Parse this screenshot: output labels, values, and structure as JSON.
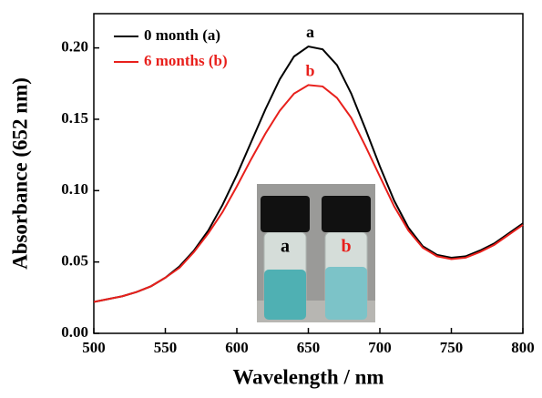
{
  "chart_data": {
    "type": "line",
    "x_label": "Wavelength / nm",
    "y_label": "Absorbance (652 nm)",
    "x": [
      500,
      510,
      520,
      530,
      540,
      550,
      560,
      570,
      580,
      590,
      600,
      610,
      620,
      630,
      640,
      650,
      660,
      670,
      680,
      690,
      700,
      710,
      720,
      730,
      740,
      750,
      760,
      770,
      780,
      790,
      800
    ],
    "series": [
      {
        "name": "0 month (a)",
        "color": "#000000",
        "label": "a",
        "values": [
          0.022,
          0.024,
          0.026,
          0.029,
          0.033,
          0.039,
          0.047,
          0.058,
          0.072,
          0.09,
          0.111,
          0.134,
          0.157,
          0.178,
          0.194,
          0.201,
          0.199,
          0.188,
          0.168,
          0.143,
          0.117,
          0.093,
          0.074,
          0.061,
          0.055,
          0.053,
          0.054,
          0.058,
          0.063,
          0.07,
          0.077
        ]
      },
      {
        "name": "6 months (b)",
        "color": "#e8201c",
        "label": "b",
        "values": [
          0.022,
          0.024,
          0.026,
          0.029,
          0.033,
          0.039,
          0.046,
          0.057,
          0.07,
          0.085,
          0.103,
          0.122,
          0.14,
          0.156,
          0.168,
          0.174,
          0.173,
          0.165,
          0.151,
          0.131,
          0.11,
          0.089,
          0.072,
          0.06,
          0.054,
          0.052,
          0.053,
          0.057,
          0.062,
          0.069,
          0.076
        ]
      }
    ],
    "xlim": [
      500,
      800
    ],
    "ylim": [
      0,
      0.224
    ],
    "xticks": [
      500,
      550,
      600,
      650,
      700,
      750,
      800
    ],
    "yticks": [
      {
        "value": 0,
        "label": "0.00"
      },
      {
        "value": 0.05,
        "label": "0.05"
      },
      {
        "value": 0.1,
        "label": "0.10"
      },
      {
        "value": 0.15,
        "label": "0.15"
      },
      {
        "value": 0.2,
        "label": "0.20"
      }
    ],
    "legend": "upper left",
    "inset_labels": [
      "a",
      "b"
    ]
  }
}
